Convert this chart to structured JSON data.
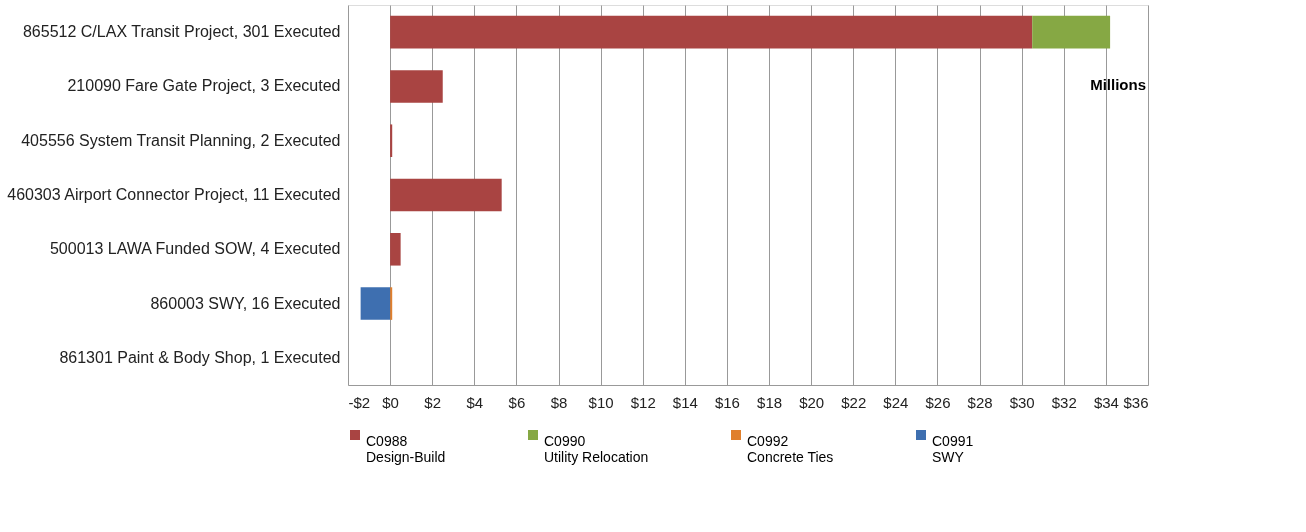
{
  "chart_data": {
    "type": "bar",
    "orientation": "horizontal",
    "stacked": true,
    "categories": [
      "865512 C/LAX Transit Project, 301 Executed",
      "210090 Fare Gate Project, 3 Executed",
      "405556 System Transit Planning, 2 Executed",
      "460303 Airport Connector Project, 11 Executed",
      "500013 LAWA Funded SOW, 4 Executed",
      "860003 SWY, 16 Executed",
      "861301 Paint & Body Shop, 1 Executed"
    ],
    "series": [
      {
        "name": "C0988 Design-Build",
        "color": "#a94442",
        "values": [
          30.5,
          2.5,
          0.1,
          5.3,
          0.5,
          0,
          0
        ]
      },
      {
        "name": "C0990 Utility Relocation",
        "color": "#86a844",
        "values": [
          3.7,
          0,
          0,
          0,
          0,
          0,
          0
        ]
      },
      {
        "name": "C0992 Concrete Ties",
        "color": "#e07f2c",
        "values": [
          0,
          0,
          0,
          0,
          0,
          0.1,
          0
        ]
      },
      {
        "name": "C0991 SWY",
        "color": "#3e6fb0",
        "values": [
          0,
          0,
          0,
          0,
          0,
          -1.4,
          0
        ]
      }
    ],
    "xlim": [
      -2,
      36
    ],
    "xticks": [
      {
        "value": -2,
        "label": "-$2"
      },
      {
        "value": 0,
        "label": "$0"
      },
      {
        "value": 2,
        "label": "$2"
      },
      {
        "value": 4,
        "label": "$4"
      },
      {
        "value": 6,
        "label": "$6"
      },
      {
        "value": 8,
        "label": "$8"
      },
      {
        "value": 10,
        "label": "$10"
      },
      {
        "value": 12,
        "label": "$12"
      },
      {
        "value": 14,
        "label": "$14"
      },
      {
        "value": 16,
        "label": "$16"
      },
      {
        "value": 18,
        "label": "$18"
      },
      {
        "value": 20,
        "label": "$20"
      },
      {
        "value": 22,
        "label": "$22"
      },
      {
        "value": 24,
        "label": "$24"
      },
      {
        "value": 26,
        "label": "$26"
      },
      {
        "value": 28,
        "label": "$28"
      },
      {
        "value": 30,
        "label": "$30"
      },
      {
        "value": 32,
        "label": "$32"
      },
      {
        "value": 34,
        "label": "$34"
      },
      {
        "value": 36,
        "label": "$36"
      }
    ],
    "grid": "x",
    "legend": "bottom",
    "annotations": [
      "Millions"
    ]
  }
}
